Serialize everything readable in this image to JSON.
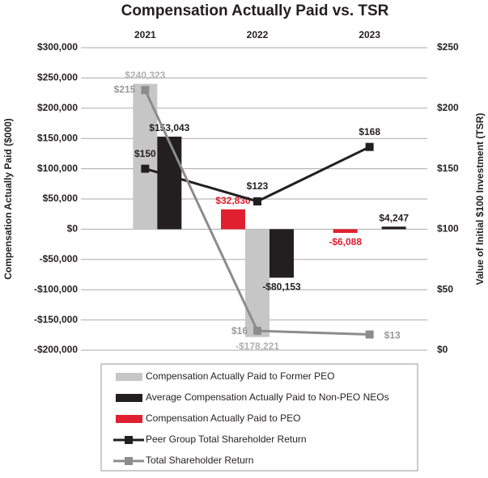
{
  "chart_data": {
    "type": "bar",
    "title": "Compensation Actually Paid vs. TSR",
    "ylabel": "Compensation Actually Paid ($000)",
    "y2label": "Value of Initial $100 Investment (TSR)",
    "categories": [
      "2021",
      "2022",
      "2023"
    ],
    "ylim": [
      -200000,
      300000
    ],
    "yticks": [
      {
        "value": -200000,
        "label": "-$200,000"
      },
      {
        "value": -150000,
        "label": "-$150,000"
      },
      {
        "value": -100000,
        "label": "-$100,000"
      },
      {
        "value": -50000,
        "label": "-$50,000"
      },
      {
        "value": 0,
        "label": "$0"
      },
      {
        "value": 50000,
        "label": "$50,000"
      },
      {
        "value": 100000,
        "label": "$100,000"
      },
      {
        "value": 150000,
        "label": "$150,000"
      },
      {
        "value": 200000,
        "label": "$200,000"
      },
      {
        "value": 250000,
        "label": "$250,000"
      },
      {
        "value": 300000,
        "label": "$300,000"
      }
    ],
    "y2lim": [
      0,
      250
    ],
    "y2ticks": [
      {
        "value": 0,
        "label": "$0"
      },
      {
        "value": 50,
        "label": "$50"
      },
      {
        "value": 100,
        "label": "$100"
      },
      {
        "value": 150,
        "label": "$150"
      },
      {
        "value": 200,
        "label": "$200"
      },
      {
        "value": 250,
        "label": "$250"
      }
    ],
    "grid": true,
    "series": [
      {
        "name": "Compensation Actually Paid to Former PEO",
        "type": "bar",
        "color": "#c6c6c6",
        "values": [
          240323,
          -178221,
          null
        ],
        "value_labels": [
          "$240,323",
          "-$178,221",
          null
        ]
      },
      {
        "name": "Average Compensation Actually Paid to Non-PEO NEOs",
        "type": "bar",
        "color": "#231f20",
        "values": [
          153043,
          -80153,
          4247
        ],
        "value_labels": [
          "$153,043",
          "-$80,153",
          "$4,247"
        ]
      },
      {
        "name": "Compensation Actually Paid to PEO",
        "type": "bar",
        "color": "#e0202f",
        "values": [
          null,
          32830,
          -6088
        ],
        "value_labels": [
          null,
          "$32,830",
          "-$6,088"
        ]
      },
      {
        "name": "Peer Group Total Shareholder Return",
        "type": "line",
        "axis": "y2",
        "color": "#231f20",
        "values": [
          150,
          123,
          168
        ],
        "value_labels": [
          "$150",
          "$123",
          "$168"
        ]
      },
      {
        "name": "Total Shareholder Return",
        "type": "line",
        "axis": "y2",
        "color": "#8c8c8c",
        "values": [
          215,
          16,
          13
        ],
        "value_labels": [
          "$215",
          "$16",
          "$13"
        ]
      }
    ]
  }
}
